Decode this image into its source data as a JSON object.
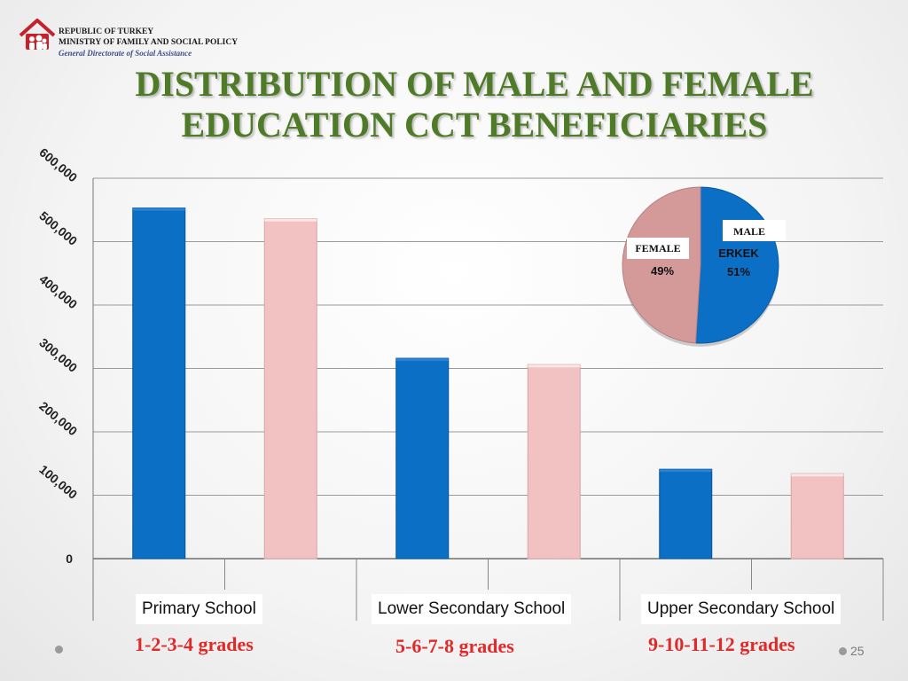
{
  "header": {
    "line1": "REPUBLIC OF TURKEY",
    "line2": "MINISTRY OF FAMILY AND SOCIAL POLICY",
    "line3": "General Directorate of Social Assistance",
    "logo_icon": "family-house-logo-icon"
  },
  "title": {
    "line1": "DISTRIBUTION OF MALE AND FEMALE",
    "line2": "EDUCATION CCT BENEFICIARIES"
  },
  "colors": {
    "male": "#0b6fc6",
    "female": "#f2c2c2",
    "title": "#4f7a28",
    "grades": "#e02a2a"
  },
  "chart_data": [
    {
      "type": "bar",
      "categories": [
        "Primary School",
        "Lower Secondary School",
        "Upper Secondary School"
      ],
      "category_notes": [
        "1-2-3-4 grades",
        "5-6-7-8 grades",
        "9-10-11-12 grades"
      ],
      "series": [
        {
          "values": [
            553000,
            316000,
            141000
          ]
        },
        {
          "values": [
            536000,
            306000,
            134000
          ]
        }
      ],
      "ylim": [
        0,
        600000
      ],
      "yticks": [
        "0",
        "100,000",
        "200,000",
        "300,000",
        "400,000",
        "500,000",
        "600,000"
      ],
      "grid": true
    },
    {
      "type": "pie",
      "slices": [
        {
          "label": "MALE",
          "sublabel": "ERKEK",
          "value": 51,
          "value_label": "51%"
        },
        {
          "label": "FEMALE",
          "value": 49,
          "value_label": "49%"
        }
      ]
    }
  ],
  "footer": {
    "page_number": "25"
  }
}
